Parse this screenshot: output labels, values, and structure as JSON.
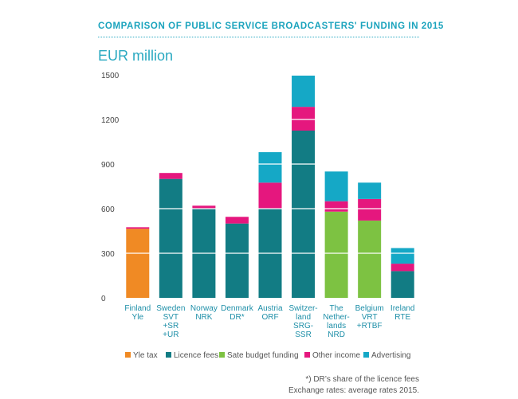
{
  "header": {
    "title": "COMPARISON OF PUBLIC SERVICE BROADCASTERS' FUNDING IN 2015"
  },
  "footnotes": {
    "note": "*) DR’s share of the licence fees",
    "rates": "Exchange rates: average rates 2015."
  },
  "chart_data": {
    "type": "bar",
    "stacked": true,
    "title": "COMPARISON OF PUBLIC SERVICE BROADCASTERS' FUNDING IN 2015",
    "ylabel": "EUR million",
    "ylim": [
      0,
      1500
    ],
    "yticks": [
      "0",
      "300",
      "600",
      "900",
      "1200",
      "1500"
    ],
    "grid": true,
    "legend_position": "bottom",
    "categories": [
      [
        "Finland",
        "Yle"
      ],
      [
        "Sweden",
        "SVT",
        "+SR",
        "+UR"
      ],
      [
        "Norway",
        "NRK"
      ],
      [
        "Denmark",
        "DR*"
      ],
      [
        "Austria",
        "ORF"
      ],
      [
        "Switzer-",
        "land",
        "SRG-",
        "SSR"
      ],
      [
        "The",
        "Nether-",
        "lands",
        "NRD"
      ],
      [
        "Belgium",
        "VRT",
        "+RTBF"
      ],
      [
        "Ireland",
        "RTE"
      ]
    ],
    "series": [
      {
        "name": "Yle tax",
        "color": "#f08a24",
        "values": [
          465,
          0,
          0,
          0,
          0,
          0,
          0,
          0,
          0
        ]
      },
      {
        "name": "Licence fees",
        "color": "#127c84",
        "values": [
          0,
          800,
          600,
          500,
          600,
          1125,
          0,
          0,
          180
        ]
      },
      {
        "name": "Sate budget funding",
        "color": "#7dc242",
        "values": [
          0,
          0,
          0,
          0,
          0,
          0,
          580,
          520,
          0
        ]
      },
      {
        "name": "Other income",
        "color": "#e5177e",
        "values": [
          10,
          40,
          20,
          45,
          175,
          160,
          70,
          145,
          50
        ]
      },
      {
        "name": "Advertising",
        "color": "#15a8c6",
        "values": [
          0,
          0,
          0,
          0,
          205,
          210,
          200,
          110,
          105
        ]
      }
    ]
  }
}
